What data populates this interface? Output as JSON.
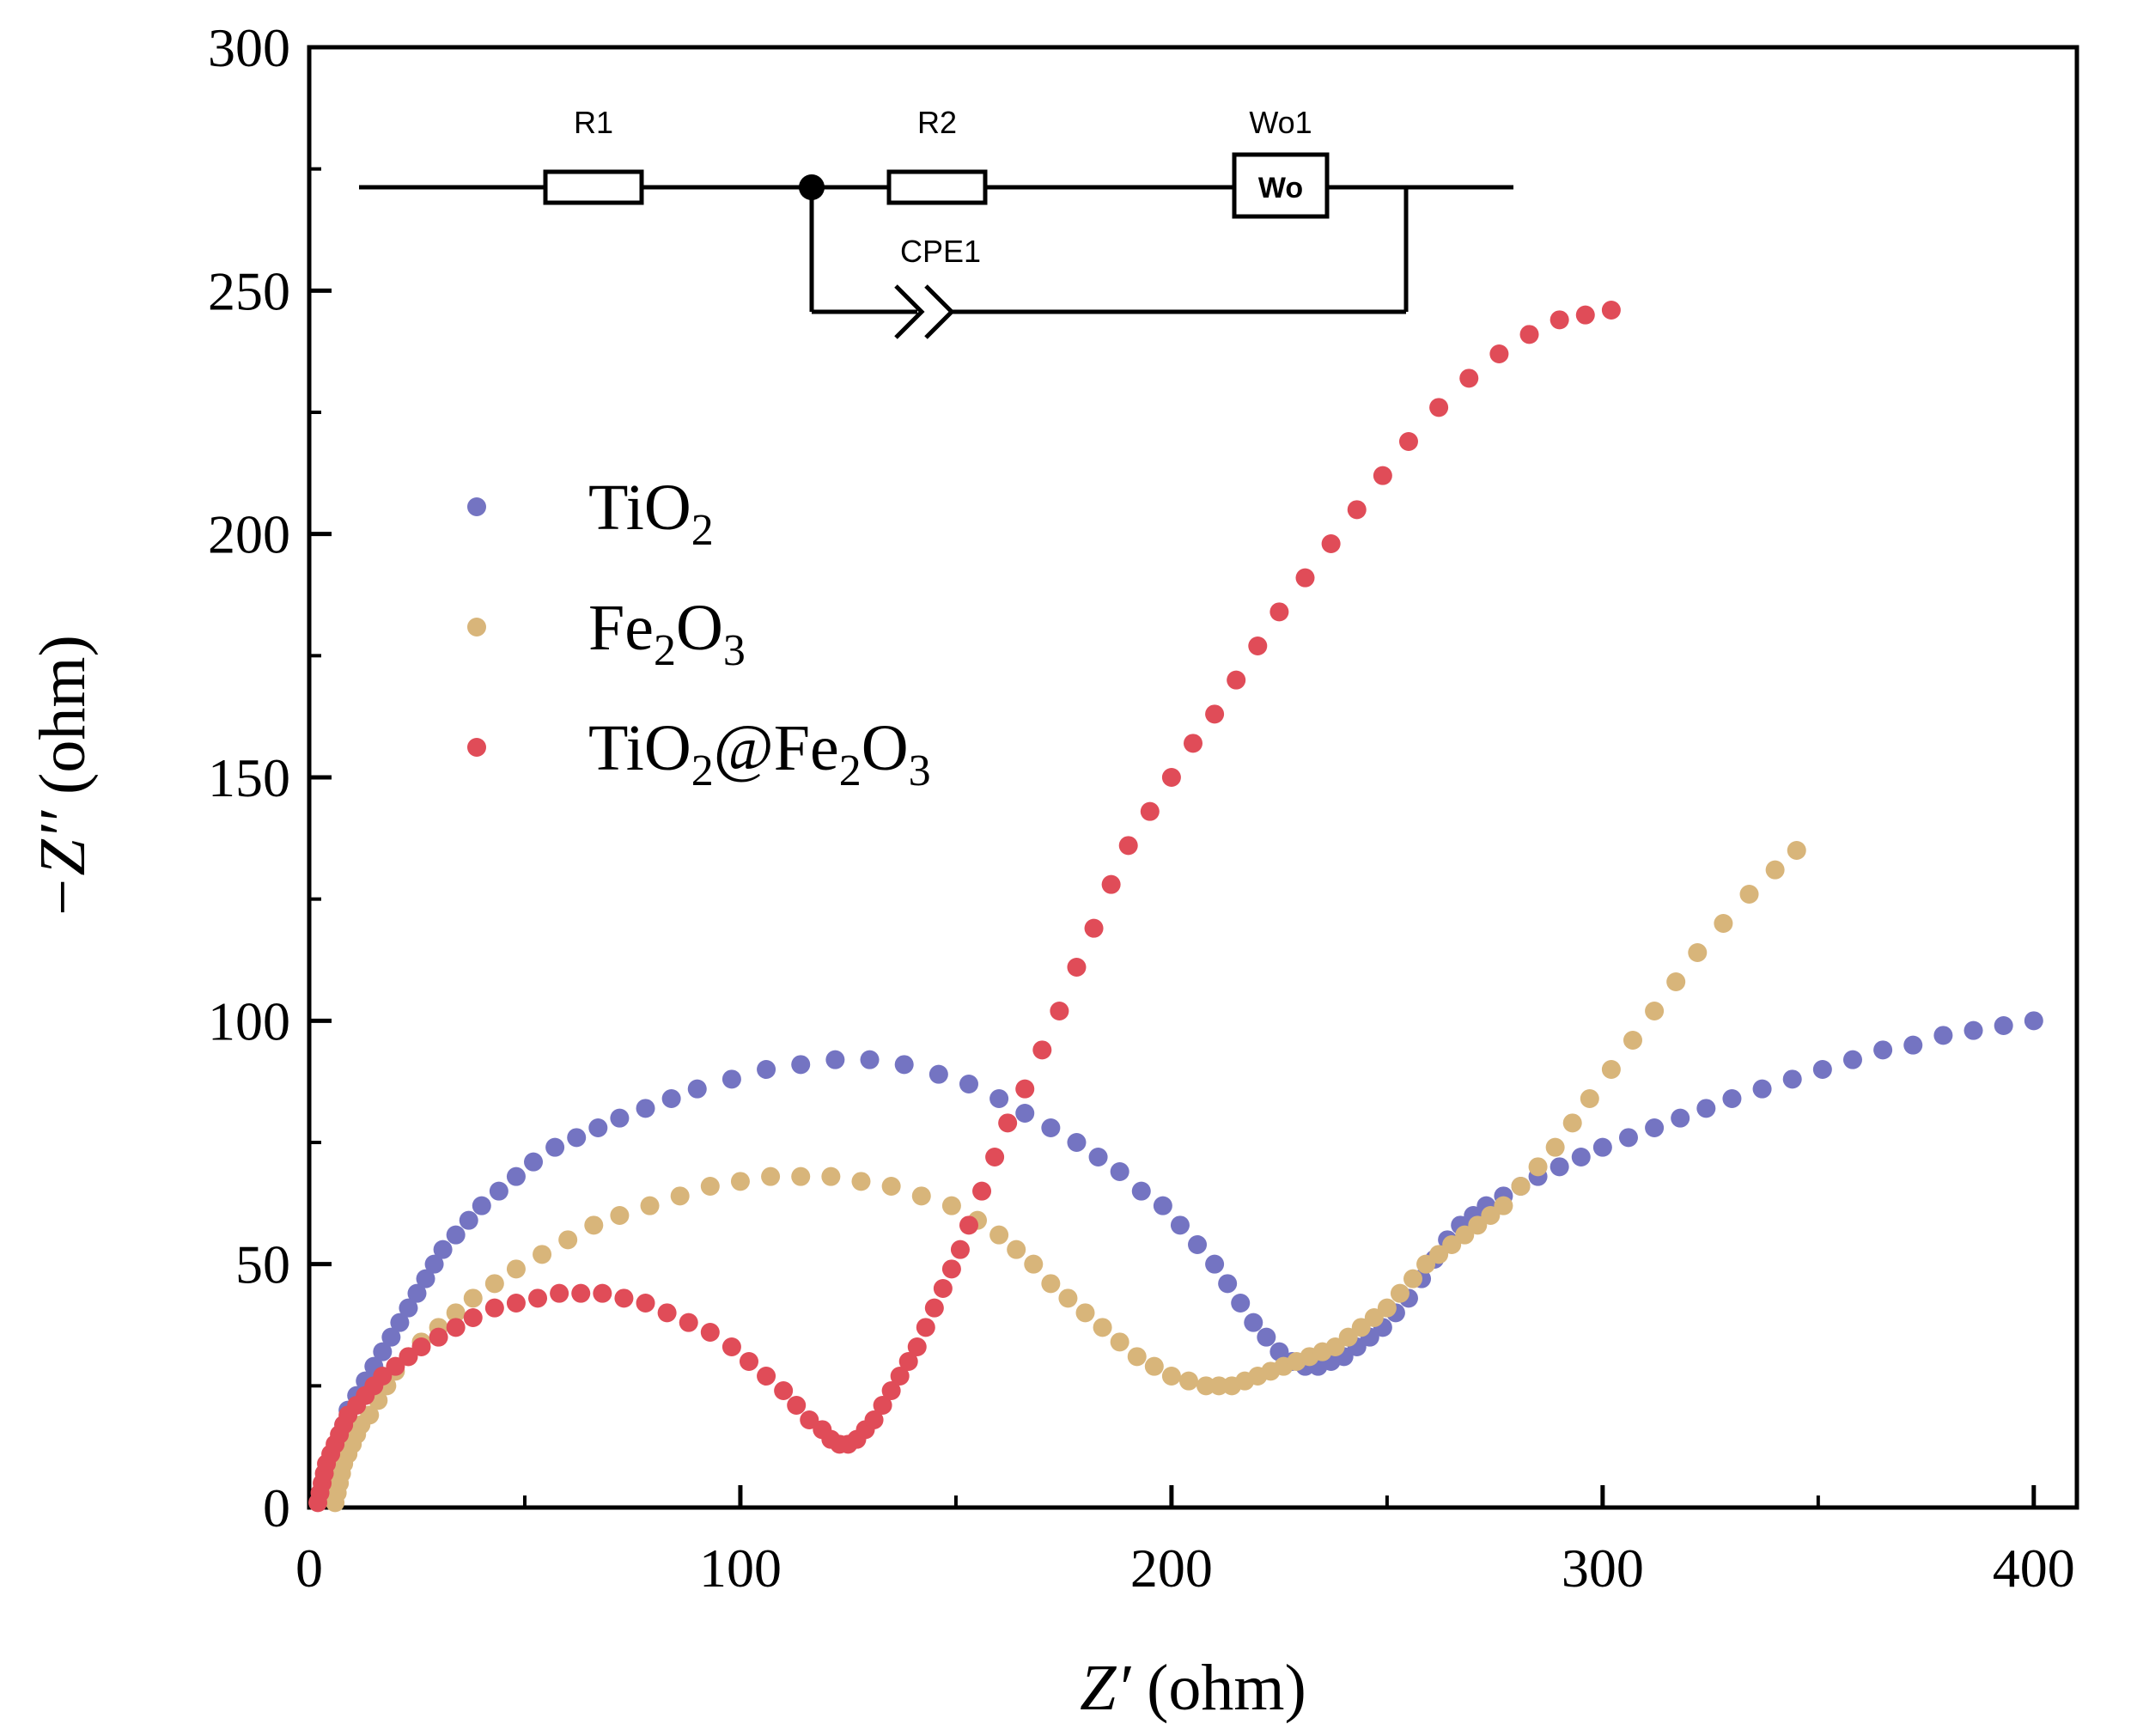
{
  "chart_data": {
    "type": "scatter",
    "title": "",
    "xlabel": {
      "prefix": "Z′",
      "unit": " (ohm)"
    },
    "ylabel": {
      "prefix": "−Z′′",
      "unit": " (ohm)"
    },
    "xlim": [
      0,
      410
    ],
    "ylim": [
      0,
      300
    ],
    "xticks": [
      0,
      100,
      200,
      300,
      400
    ],
    "yticks": [
      0,
      50,
      100,
      150,
      200,
      250,
      300
    ],
    "legend_position": "upper-left",
    "series": [
      {
        "name": "TiO2",
        "label_parts": [
          [
            "TiO",
            ""
          ],
          [
            "2",
            "sub"
          ]
        ],
        "color": "#7474C2",
        "x": [
          3,
          4,
          5,
          6,
          7,
          8,
          9,
          11,
          13,
          15,
          17,
          19,
          21,
          23,
          25,
          27,
          29,
          31,
          34,
          37,
          40,
          44,
          48,
          52,
          57,
          62,
          67,
          72,
          78,
          84,
          90,
          98,
          106,
          114,
          122,
          130,
          138,
          146,
          153,
          160,
          166,
          172,
          178,
          183,
          188,
          193,
          198,
          202,
          206,
          210,
          213,
          216,
          219,
          222,
          225,
          228,
          231,
          234,
          237,
          240,
          243,
          246,
          249,
          252,
          255,
          258,
          261,
          264,
          267,
          270,
          273,
          277,
          281,
          285,
          290,
          295,
          300,
          306,
          312,
          318,
          324,
          330,
          337,
          344,
          351,
          358,
          365,
          372,
          379,
          386,
          393,
          400
        ],
        "y": [
          2,
          5,
          8,
          11,
          14,
          17,
          20,
          23,
          26,
          29,
          32,
          35,
          38,
          41,
          44,
          47,
          50,
          53,
          56,
          59,
          62,
          65,
          68,
          71,
          74,
          76,
          78,
          80,
          82,
          84,
          86,
          88,
          90,
          91,
          92,
          92,
          91,
          89,
          87,
          84,
          81,
          78,
          75,
          72,
          69,
          65,
          62,
          58,
          54,
          50,
          46,
          42,
          38,
          35,
          32,
          30,
          29,
          29,
          30,
          31,
          33,
          35,
          37,
          40,
          43,
          47,
          51,
          55,
          58,
          60,
          62,
          64,
          66,
          68,
          70,
          72,
          74,
          76,
          78,
          80,
          82,
          84,
          86,
          88,
          90,
          92,
          94,
          95,
          97,
          98,
          99,
          100
        ]
      },
      {
        "name": "Fe2O3",
        "label_parts": [
          [
            "Fe",
            ""
          ],
          [
            "2",
            "sub"
          ],
          [
            "O",
            ""
          ],
          [
            "3",
            "sub"
          ]
        ],
        "color": "#D8B57A",
        "x": [
          6,
          6.5,
          7,
          7.5,
          8,
          9,
          10,
          11,
          12,
          14,
          16,
          18,
          20,
          23,
          26,
          30,
          34,
          38,
          43,
          48,
          54,
          60,
          66,
          72,
          79,
          86,
          93,
          100,
          107,
          114,
          121,
          128,
          135,
          142,
          149,
          155,
          160,
          164,
          168,
          172,
          176,
          180,
          184,
          188,
          192,
          196,
          200,
          204,
          208,
          211,
          214,
          217,
          220,
          223,
          226,
          229,
          232,
          235,
          238,
          241,
          244,
          247,
          250,
          253,
          256,
          259,
          262,
          265,
          268,
          271,
          274,
          277,
          281,
          285,
          289,
          293,
          297,
          302,
          307,
          312,
          317,
          322,
          328,
          334,
          340,
          345
        ],
        "y": [
          1,
          3,
          5,
          7,
          9,
          11,
          13,
          15,
          17,
          19,
          22,
          25,
          28,
          31,
          34,
          37,
          40,
          43,
          46,
          49,
          52,
          55,
          58,
          60,
          62,
          64,
          66,
          67,
          68,
          68,
          68,
          67,
          66,
          64,
          62,
          59,
          56,
          53,
          50,
          46,
          43,
          40,
          37,
          34,
          31,
          29,
          27,
          26,
          25,
          25,
          25,
          26,
          27,
          28,
          29,
          30,
          31,
          32,
          33,
          35,
          37,
          39,
          41,
          44,
          47,
          50,
          52,
          54,
          56,
          58,
          60,
          62,
          66,
          70,
          74,
          79,
          84,
          90,
          96,
          102,
          108,
          114,
          120,
          126,
          131,
          135
        ]
      },
      {
        "name": "TiO2@Fe2O3",
        "label_parts": [
          [
            "TiO",
            ""
          ],
          [
            "2",
            "sub"
          ],
          [
            "@Fe",
            ""
          ],
          [
            "2",
            "sub"
          ],
          [
            "O",
            ""
          ],
          [
            "3",
            "sub"
          ]
        ],
        "color": "#E04C58",
        "x": [
          2,
          2.5,
          3,
          3.5,
          4,
          5,
          6,
          7,
          8,
          9,
          11,
          13,
          15,
          17,
          20,
          23,
          26,
          30,
          34,
          38,
          43,
          48,
          53,
          58,
          63,
          68,
          73,
          78,
          83,
          88,
          93,
          98,
          102,
          106,
          110,
          113,
          116,
          119,
          121,
          123,
          125,
          127,
          129,
          131,
          133,
          135,
          137,
          139,
          141,
          143,
          145,
          147,
          149,
          151,
          153,
          156,
          159,
          162,
          166,
          170,
          174,
          178,
          182,
          186,
          190,
          195,
          200,
          205,
          210,
          215,
          220,
          225,
          231,
          237,
          243,
          249,
          255,
          262,
          269,
          276,
          283,
          290,
          296,
          302
        ],
        "y": [
          1,
          3,
          5,
          7,
          9,
          11,
          13,
          15,
          17,
          19,
          21,
          23,
          25,
          27,
          29,
          31,
          33,
          35,
          37,
          39,
          41,
          42,
          43,
          44,
          44,
          44,
          43,
          42,
          40,
          38,
          36,
          33,
          30,
          27,
          24,
          21,
          18,
          16,
          14,
          13,
          13,
          14,
          16,
          18,
          21,
          24,
          27,
          30,
          33,
          37,
          41,
          45,
          49,
          53,
          58,
          65,
          72,
          79,
          86,
          94,
          102,
          111,
          119,
          128,
          136,
          143,
          150,
          157,
          163,
          170,
          177,
          184,
          191,
          198,
          205,
          212,
          219,
          226,
          232,
          237,
          241,
          244,
          245,
          246
        ]
      }
    ],
    "inset": {
      "type": "equivalent-circuit",
      "labels": {
        "r1": "R1",
        "r2": "R2",
        "wo1": "Wo1",
        "wo_box": "Wo",
        "cpe1": "CPE1"
      }
    }
  }
}
